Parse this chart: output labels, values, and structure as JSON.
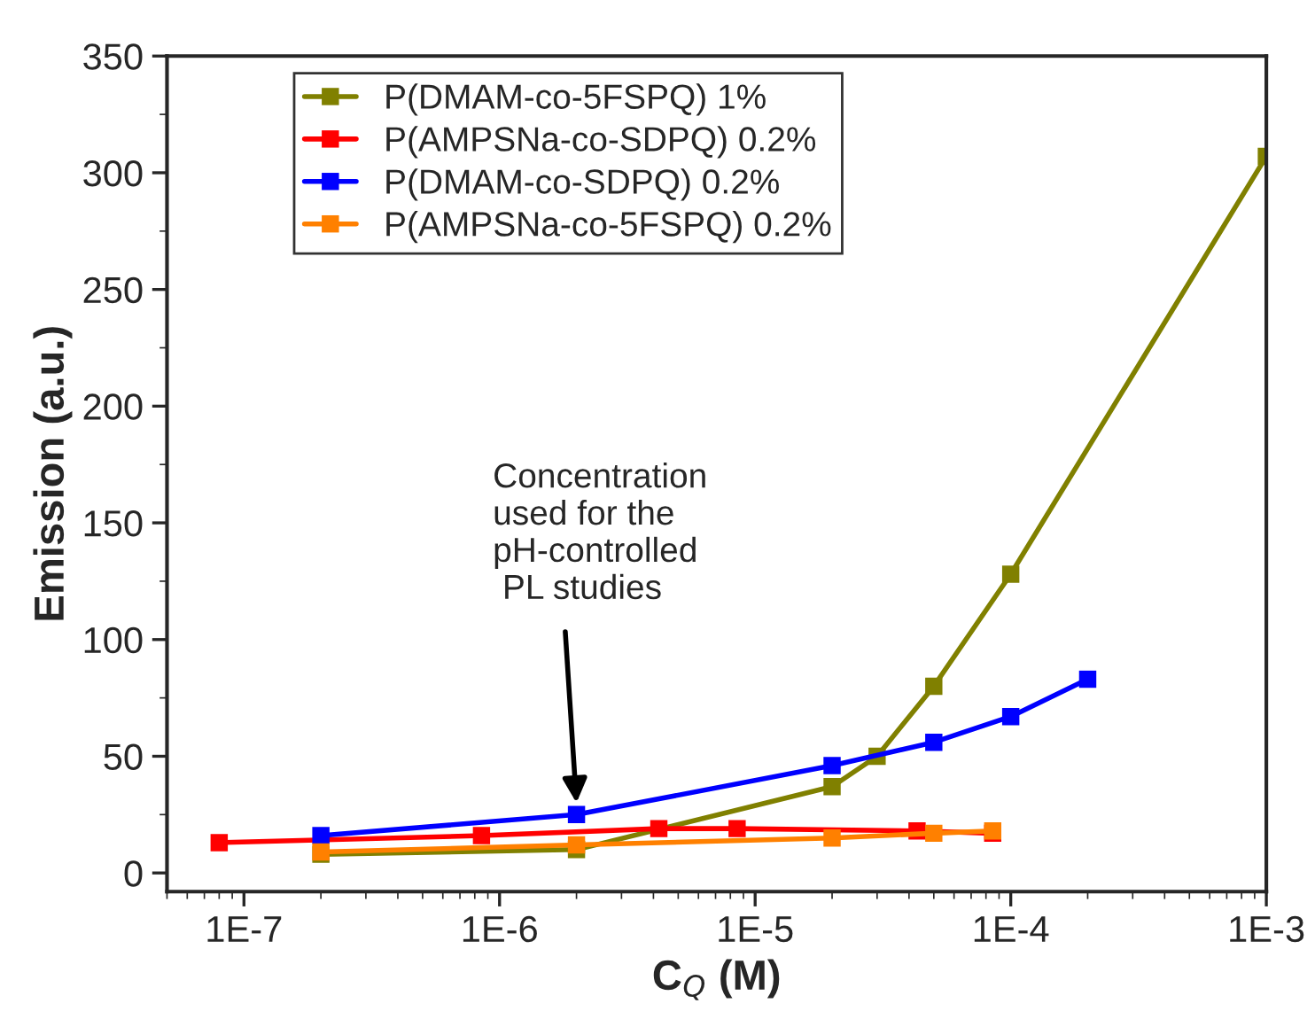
{
  "chart_data": {
    "type": "line",
    "xlabel": "C$_{Q}$ (M)",
    "ylabel": "Emission (a.u.)",
    "log": "x",
    "xlim": [
      5e-08,
      0.001
    ],
    "xticks": [
      {
        "value": 1e-07,
        "label": "1E-7"
      },
      {
        "value": 1e-06,
        "label": "1E-6"
      },
      {
        "value": 1e-05,
        "label": "1E-5"
      },
      {
        "value": 0.0001,
        "label": "1E-4"
      },
      {
        "value": 0.001,
        "label": "1E-3"
      }
    ],
    "ylim": [
      -8,
      350
    ],
    "yticks": [
      0,
      50,
      100,
      150,
      200,
      250,
      300,
      350
    ],
    "grid": false,
    "legend": "top left",
    "marker": "square",
    "line_style": "solid",
    "annotations": [
      {
        "text": "Concentration\nused for the\npH-controlled\n PL studies",
        "x": 2e-06,
        "y": 30
      }
    ],
    "series": [
      {
        "name": "P(DMAM-co-5FSPQ) 1%",
        "color": "#808000",
        "x": [
          2e-07,
          2e-06,
          2e-05,
          3e-05,
          5e-05,
          0.0001,
          0.001
        ],
        "values": [
          8,
          10,
          37,
          50,
          80,
          128,
          307
        ]
      },
      {
        "name": "P(AMPSNa-co-SDPQ) 0.2%",
        "color": "#ff0000",
        "x": [
          8e-08,
          8.5e-07,
          4.2e-06,
          8.5e-06,
          4.3e-05,
          8.5e-05
        ],
        "values": [
          13,
          16,
          19,
          19,
          18,
          17
        ]
      },
      {
        "name": "P(DMAM-co-SDPQ) 0.2%",
        "color": "#0000ff",
        "x": [
          2e-07,
          2e-06,
          2e-05,
          5e-05,
          0.0001,
          0.0002
        ],
        "values": [
          16,
          25,
          46,
          56,
          67,
          83
        ]
      },
      {
        "name": "P(AMPSNa-co-5FSPQ) 0.2%",
        "color": "#ff8000",
        "x": [
          2e-07,
          2e-06,
          2e-05,
          5e-05,
          8.5e-05
        ],
        "values": [
          9,
          12,
          15,
          17,
          18
        ]
      }
    ]
  }
}
